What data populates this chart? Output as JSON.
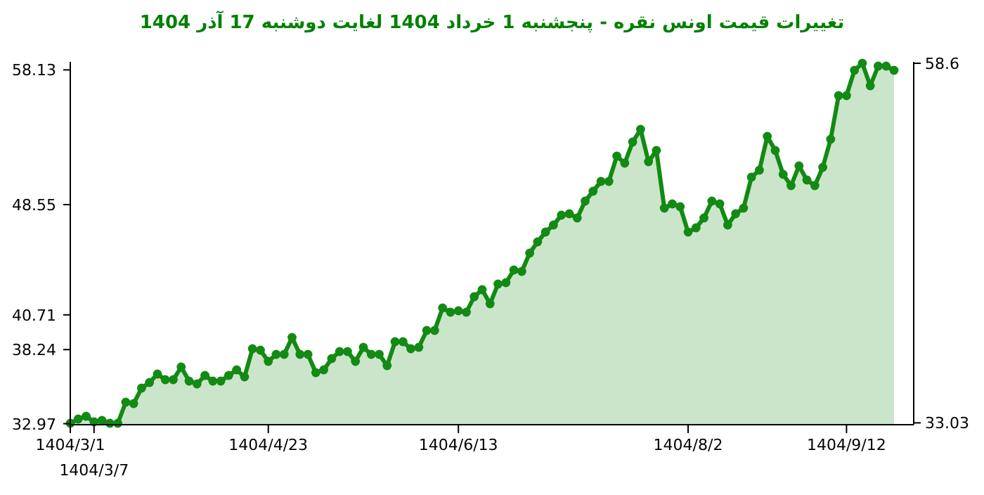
{
  "chart_data": {
    "type": "area",
    "title": "تغییرات قیمت اونس نقره - پنجشنبه  1 خرداد 1404 لغایت  دوشنبه  17 آذر 1404",
    "marker": "circle",
    "grid": false,
    "categories": [
      "1404/3/1",
      null,
      null,
      "1404/3/7",
      null,
      null,
      null,
      null,
      null,
      null,
      null,
      null,
      null,
      null,
      null,
      null,
      null,
      null,
      null,
      null,
      null,
      null,
      null,
      null,
      null,
      "1404/4/23",
      null,
      null,
      null,
      null,
      null,
      null,
      null,
      null,
      null,
      null,
      null,
      null,
      null,
      null,
      null,
      null,
      null,
      null,
      null,
      null,
      null,
      null,
      null,
      "1404/6/13",
      null,
      null,
      null,
      null,
      null,
      null,
      null,
      null,
      null,
      null,
      null,
      null,
      null,
      null,
      null,
      null,
      null,
      null,
      null,
      null,
      null,
      null,
      null,
      null,
      null,
      null,
      null,
      null,
      "1404/8/2",
      null,
      null,
      null,
      null,
      null,
      null,
      null,
      null,
      null,
      null,
      null,
      null,
      null,
      null,
      null,
      null,
      null,
      null,
      null,
      "1404/9/12",
      null,
      null,
      null,
      null,
      null,
      null
    ],
    "series": [
      {
        "color": "#138a13",
        "values": [
          33.0,
          33.3,
          33.5,
          33.1,
          33.2,
          33.0,
          33.0,
          34.5,
          34.4,
          35.5,
          35.9,
          36.5,
          36.1,
          36.1,
          37.0,
          36.0,
          35.8,
          36.4,
          36.0,
          36.0,
          36.4,
          36.8,
          36.3,
          38.3,
          38.2,
          37.4,
          37.9,
          37.9,
          39.1,
          37.9,
          37.9,
          36.6,
          36.8,
          37.6,
          38.1,
          38.1,
          37.4,
          38.4,
          37.9,
          37.9,
          37.1,
          38.8,
          38.8,
          38.3,
          38.4,
          39.6,
          39.6,
          41.2,
          40.9,
          41.0,
          40.9,
          42.0,
          42.5,
          41.5,
          42.9,
          43.0,
          43.9,
          43.8,
          45.1,
          45.9,
          46.6,
          47.1,
          47.8,
          47.9,
          47.6,
          48.8,
          49.5,
          50.2,
          50.2,
          52.0,
          51.5,
          53.0,
          53.9,
          51.6,
          52.4,
          48.3,
          48.6,
          48.4,
          46.6,
          46.9,
          47.6,
          48.8,
          48.6,
          47.1,
          47.9,
          48.3,
          50.5,
          51.0,
          53.4,
          52.4,
          50.7,
          49.9,
          51.3,
          50.3,
          49.9,
          51.2,
          53.2,
          56.3,
          56.3,
          58.1,
          58.6,
          57.0,
          58.4,
          58.4,
          58.1
        ]
      }
    ],
    "ylim": [
      32.9,
      58.7
    ],
    "yticks": [
      32.97,
      38.24,
      40.71,
      48.55,
      58.13
    ],
    "y2lim": [
      32.9,
      58.7
    ],
    "y2ticks": [
      33.03,
      58.6
    ]
  }
}
